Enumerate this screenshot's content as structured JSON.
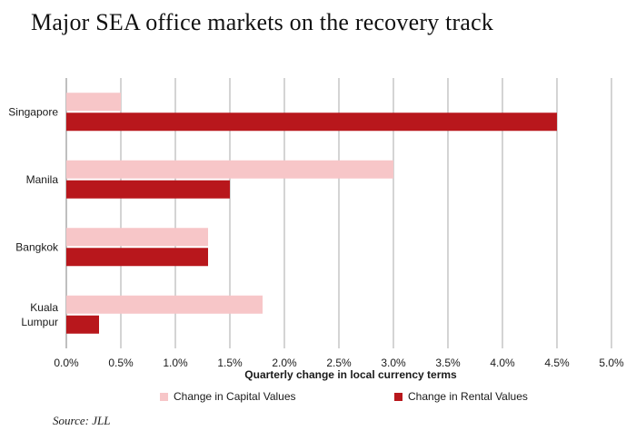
{
  "title": "Major SEA office markets on the recovery track",
  "source": "Source: JLL",
  "chart_data": {
    "type": "bar",
    "orientation": "horizontal",
    "categories": [
      "Singapore",
      "Manila",
      "Bangkok",
      "Kuala Lumpur"
    ],
    "series": [
      {
        "name": "Change in Capital Values",
        "color": "#f7c6c8",
        "values": [
          0.5,
          3.0,
          1.3,
          1.8
        ]
      },
      {
        "name": "Change in Rental Values",
        "color": "#b8171c",
        "values": [
          4.5,
          1.5,
          1.3,
          0.3
        ]
      }
    ],
    "xlabel": "Quarterly change in local currency terms",
    "xlim": [
      0,
      5
    ],
    "xticks": [
      "0.0%",
      "0.5%",
      "1.0%",
      "1.5%",
      "2.0%",
      "2.5%",
      "3.0%",
      "3.5%",
      "4.0%",
      "4.5%",
      "5.0%"
    ],
    "grid": true,
    "legend_position": "bottom"
  }
}
